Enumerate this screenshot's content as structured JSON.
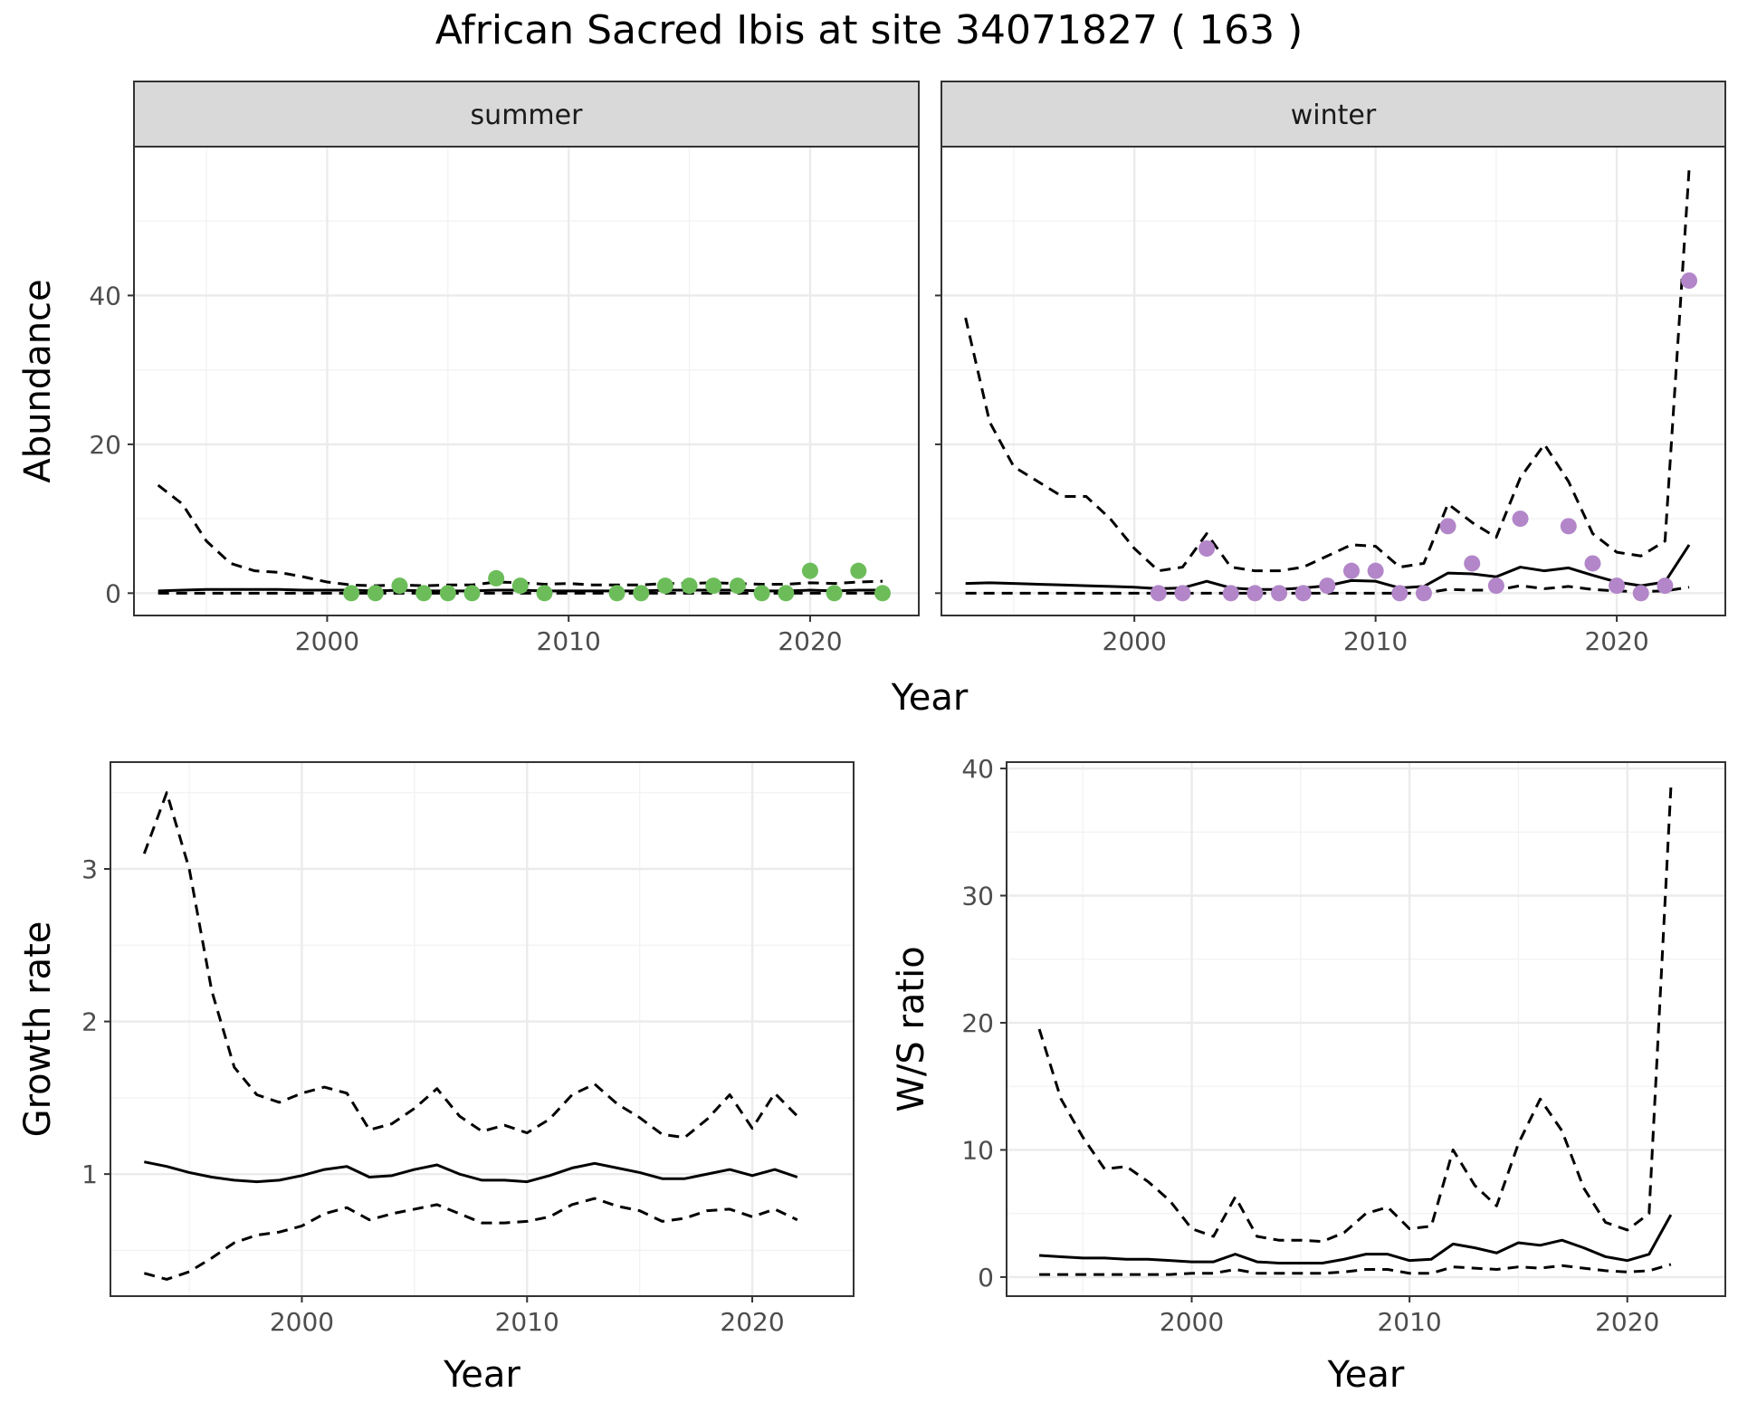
{
  "title": "African Sacred Ibis at site 34071827 ( 163 )",
  "colors": {
    "summer_points": "#6cbd5a",
    "winter_points": "#b286c8",
    "lines": "#000000",
    "grid": "#ebebeb",
    "strip": "#d9d9d9"
  },
  "chart_data": [
    {
      "id": "abundance",
      "type": "line+scatter",
      "facets": [
        "summer",
        "winter"
      ],
      "xlabel": "Year",
      "ylabel": "Abundance",
      "x_ticks": [
        2000,
        2010,
        2020
      ],
      "y_ticks": [
        0,
        20,
        40
      ],
      "xlim": [
        1992,
        2024.5
      ],
      "ylim": [
        -3,
        60
      ],
      "grid": true,
      "panels": [
        {
          "facet": "summer",
          "point_color": "#6cbd5a",
          "lines": {
            "x": [
              1993,
              1994,
              1995,
              1996,
              1997,
              1998,
              1999,
              2000,
              2001,
              2002,
              2003,
              2004,
              2005,
              2006,
              2007,
              2008,
              2009,
              2010,
              2011,
              2012,
              2013,
              2014,
              2015,
              2016,
              2017,
              2018,
              2019,
              2020,
              2021,
              2022,
              2023
            ],
            "mean": [
              0.3,
              0.4,
              0.5,
              0.5,
              0.5,
              0.5,
              0.4,
              0.4,
              0.4,
              0.3,
              0.4,
              0.3,
              0.3,
              0.3,
              0.4,
              0.4,
              0.3,
              0.3,
              0.3,
              0.3,
              0.3,
              0.4,
              0.4,
              0.4,
              0.4,
              0.3,
              0.3,
              0.4,
              0.3,
              0.4,
              0.4
            ],
            "upper": [
              14.5,
              12,
              7,
              4,
              3,
              2.8,
              2.2,
              1.5,
              1.1,
              1,
              1.1,
              1,
              1.1,
              1.1,
              1.5,
              1.4,
              1.2,
              1.3,
              1.1,
              1.1,
              1.1,
              1.3,
              1.3,
              1.4,
              1.3,
              1.2,
              1.2,
              1.4,
              1.3,
              1.5,
              1.6
            ],
            "lower": [
              0,
              0,
              0,
              0,
              0,
              0,
              0,
              0,
              0,
              0,
              0,
              0,
              0,
              0,
              0,
              0,
              0,
              0,
              0,
              0,
              0,
              0,
              0,
              0,
              0,
              0,
              0,
              0,
              0,
              0,
              0
            ]
          },
          "points": {
            "x": [
              2001,
              2002,
              2003,
              2004,
              2005,
              2006,
              2007,
              2008,
              2009,
              2012,
              2013,
              2014,
              2015,
              2016,
              2017,
              2018,
              2019,
              2020,
              2021,
              2022,
              2023
            ],
            "y": [
              0,
              0,
              1,
              0,
              0,
              0,
              2,
              1,
              0,
              0,
              0,
              1,
              1,
              1,
              1,
              0,
              0,
              3,
              0,
              3,
              0
            ]
          }
        },
        {
          "facet": "winter",
          "point_color": "#b286c8",
          "lines": {
            "x": [
              1993,
              1994,
              1995,
              1996,
              1997,
              1998,
              1999,
              2000,
              2001,
              2002,
              2003,
              2004,
              2005,
              2006,
              2007,
              2008,
              2009,
              2010,
              2011,
              2012,
              2013,
              2014,
              2015,
              2016,
              2017,
              2018,
              2019,
              2020,
              2021,
              2022,
              2023
            ],
            "mean": [
              1.3,
              1.4,
              1.3,
              1.2,
              1.1,
              1,
              0.9,
              0.8,
              0.6,
              0.7,
              1.6,
              0.7,
              0.5,
              0.5,
              0.7,
              1,
              1.7,
              1.6,
              0.7,
              0.9,
              2.7,
              2.6,
              2.2,
              3.5,
              3,
              3.4,
              2.4,
              1.5,
              1,
              1.5,
              6.5
            ],
            "upper": [
              37,
              23,
              17,
              15,
              13,
              13,
              10,
              6,
              3,
              3.5,
              8,
              3.5,
              3,
              3,
              3.5,
              5,
              6.5,
              6.3,
              3.5,
              4,
              12,
              9.5,
              7.5,
              15.5,
              20,
              15,
              8,
              5.5,
              5,
              7,
              57
            ],
            "lower": [
              0,
              0,
              0,
              0,
              0,
              0,
              0,
              0,
              0,
              0,
              0,
              0,
              0,
              0,
              0,
              0,
              0,
              0,
              0,
              0,
              0.5,
              0.4,
              0.4,
              1,
              0.6,
              0.9,
              0.5,
              0.3,
              0.2,
              0.3,
              0.8
            ]
          },
          "points": {
            "x": [
              2001,
              2002,
              2003,
              2004,
              2005,
              2006,
              2007,
              2008,
              2009,
              2010,
              2011,
              2012,
              2013,
              2014,
              2015,
              2016,
              2018,
              2019,
              2020,
              2021,
              2022,
              2023
            ],
            "y": [
              0,
              0,
              6,
              0,
              0,
              0,
              0,
              1,
              3,
              3,
              0,
              0,
              9,
              4,
              1,
              10,
              9,
              4,
              1,
              0,
              1,
              42
            ]
          }
        }
      ]
    },
    {
      "id": "growth",
      "type": "line",
      "xlabel": "Year",
      "ylabel": "Growth rate",
      "x_ticks": [
        2000,
        2010,
        2020
      ],
      "y_ticks": [
        1,
        2,
        3
      ],
      "xlim": [
        1991.5,
        2024.5
      ],
      "ylim": [
        0.2,
        3.7
      ],
      "grid": true,
      "lines": {
        "x": [
          1993,
          1994,
          1995,
          1996,
          1997,
          1998,
          1999,
          2000,
          2001,
          2002,
          2003,
          2004,
          2005,
          2006,
          2007,
          2008,
          2009,
          2010,
          2011,
          2012,
          2013,
          2014,
          2015,
          2016,
          2017,
          2018,
          2019,
          2020,
          2021,
          2022
        ],
        "mean": [
          1.08,
          1.05,
          1.01,
          0.98,
          0.96,
          0.95,
          0.96,
          0.99,
          1.03,
          1.05,
          0.98,
          0.99,
          1.03,
          1.06,
          1,
          0.96,
          0.96,
          0.95,
          0.99,
          1.04,
          1.07,
          1.04,
          1.01,
          0.97,
          0.97,
          1,
          1.03,
          0.99,
          1.03,
          0.98
        ],
        "upper": [
          3.1,
          3.5,
          3,
          2.2,
          1.7,
          1.52,
          1.47,
          1.53,
          1.57,
          1.53,
          1.29,
          1.33,
          1.43,
          1.56,
          1.38,
          1.28,
          1.32,
          1.27,
          1.36,
          1.52,
          1.59,
          1.46,
          1.37,
          1.26,
          1.24,
          1.36,
          1.52,
          1.3,
          1.53,
          1.38
        ],
        "lower": [
          0.35,
          0.31,
          0.36,
          0.45,
          0.55,
          0.6,
          0.62,
          0.66,
          0.74,
          0.78,
          0.7,
          0.74,
          0.77,
          0.8,
          0.74,
          0.68,
          0.68,
          0.69,
          0.72,
          0.8,
          0.84,
          0.79,
          0.76,
          0.69,
          0.71,
          0.76,
          0.77,
          0.72,
          0.77,
          0.7
        ]
      }
    },
    {
      "id": "ws_ratio",
      "type": "line",
      "xlabel": "Year",
      "ylabel": "W/S ratio",
      "x_ticks": [
        2000,
        2010,
        2020
      ],
      "y_ticks": [
        0,
        10,
        20,
        30,
        40
      ],
      "xlim": [
        1991.5,
        2024.5
      ],
      "ylim": [
        -1.5,
        40.5
      ],
      "grid": true,
      "lines": {
        "x": [
          1993,
          1994,
          1995,
          1996,
          1997,
          1998,
          1999,
          2000,
          2001,
          2002,
          2003,
          2004,
          2005,
          2006,
          2007,
          2008,
          2009,
          2010,
          2011,
          2012,
          2013,
          2014,
          2015,
          2016,
          2017,
          2018,
          2019,
          2020,
          2021,
          2022
        ],
        "mean": [
          1.7,
          1.6,
          1.5,
          1.5,
          1.4,
          1.4,
          1.3,
          1.2,
          1.2,
          1.8,
          1.2,
          1.1,
          1.1,
          1.1,
          1.4,
          1.8,
          1.8,
          1.3,
          1.4,
          2.6,
          2.3,
          1.9,
          2.7,
          2.5,
          2.9,
          2.3,
          1.6,
          1.3,
          1.8,
          4.9
        ],
        "upper": [
          19.5,
          14,
          11,
          8.5,
          8.7,
          7.5,
          6,
          3.8,
          3.2,
          6.3,
          3.2,
          2.9,
          2.9,
          2.8,
          3.5,
          5,
          5.5,
          3.8,
          4,
          10,
          7.2,
          5.6,
          10.5,
          14,
          11.5,
          7,
          4.3,
          3.7,
          5,
          38.5
        ],
        "lower": [
          0.2,
          0.2,
          0.2,
          0.2,
          0.2,
          0.2,
          0.2,
          0.3,
          0.3,
          0.6,
          0.3,
          0.3,
          0.3,
          0.3,
          0.4,
          0.6,
          0.6,
          0.3,
          0.3,
          0.8,
          0.7,
          0.6,
          0.8,
          0.7,
          0.9,
          0.7,
          0.5,
          0.4,
          0.5,
          1
        ]
      }
    }
  ]
}
